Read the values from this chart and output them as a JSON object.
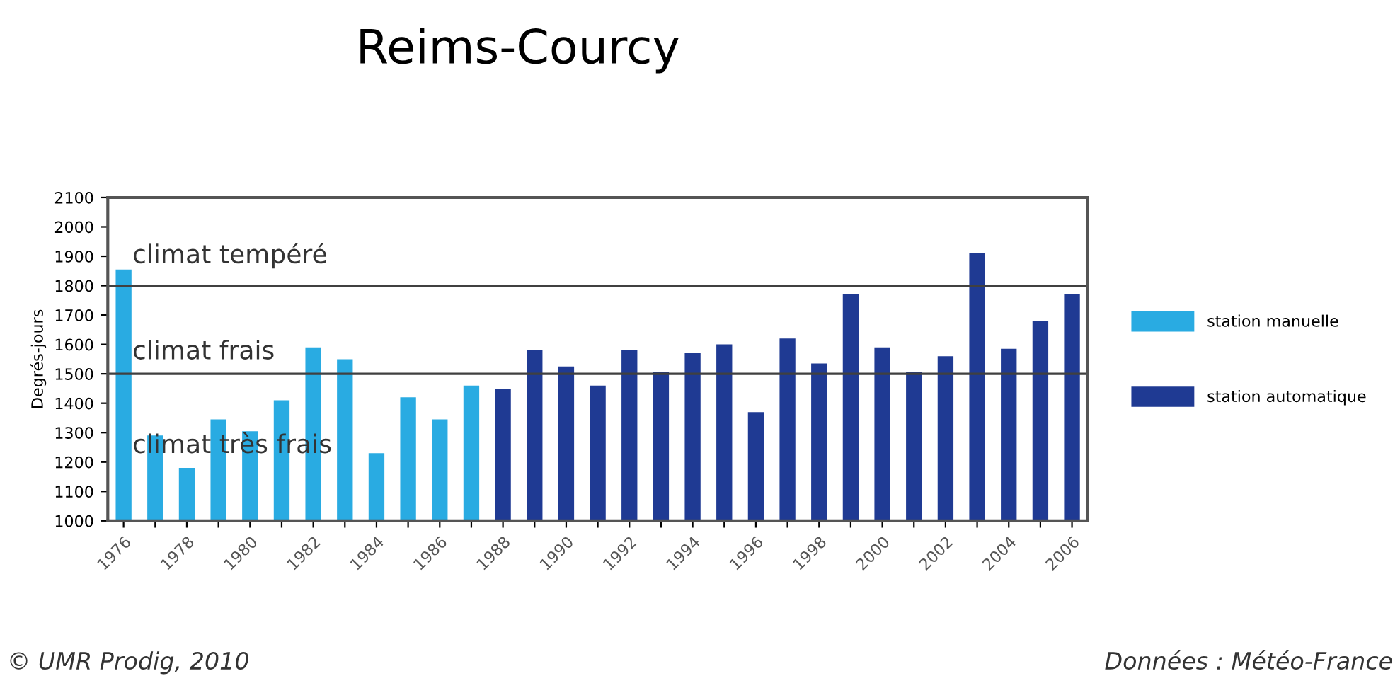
{
  "chart_data": {
    "type": "bar",
    "title": "Reims-Courcy",
    "ylabel": "Degrés-jours",
    "categories": [
      "1976",
      null,
      "1978",
      null,
      "1980",
      null,
      "1982",
      null,
      "1984",
      null,
      "1986",
      null,
      "1988",
      null,
      "1990",
      null,
      "1992",
      null,
      "1994",
      null,
      "1996",
      null,
      "1998",
      null,
      "2000",
      null,
      "2002",
      null,
      "2004",
      null,
      "2006"
    ],
    "series": [
      {
        "name": "station manuelle",
        "color": "#29abe2",
        "values": [
          1855,
          1290,
          1180,
          1345,
          1305,
          1410,
          1590,
          1550,
          1230,
          1420,
          1345,
          1460,
          null,
          null,
          null,
          null,
          null,
          null,
          null,
          null,
          null,
          null,
          null,
          null,
          null,
          null,
          null,
          null,
          null,
          null,
          null
        ]
      },
      {
        "name": "station automatique",
        "color": "#1f3a93",
        "values": [
          null,
          null,
          null,
          null,
          null,
          null,
          null,
          null,
          null,
          null,
          null,
          null,
          1450,
          1580,
          1525,
          1460,
          1580,
          1505,
          1570,
          1600,
          1370,
          1620,
          1535,
          1770,
          1590,
          1505,
          1560,
          1910,
          1585,
          1680,
          1770
        ]
      }
    ],
    "ylim": [
      1000,
      2100
    ],
    "yticks": [
      1000,
      1100,
      1200,
      1300,
      1400,
      1500,
      1600,
      1700,
      1800,
      1900,
      2000,
      2100
    ],
    "ref_lines": [
      {
        "axis": "y",
        "value": 1800,
        "color": "#404040"
      },
      {
        "axis": "y",
        "value": 1500,
        "color": "#404040"
      }
    ],
    "annotations": [
      "climat tempéré",
      "climat frais",
      "climat très frais",
      "© UMR Prodig, 2010",
      "Données : Météo-France"
    ],
    "legend": "right",
    "grid": false
  }
}
